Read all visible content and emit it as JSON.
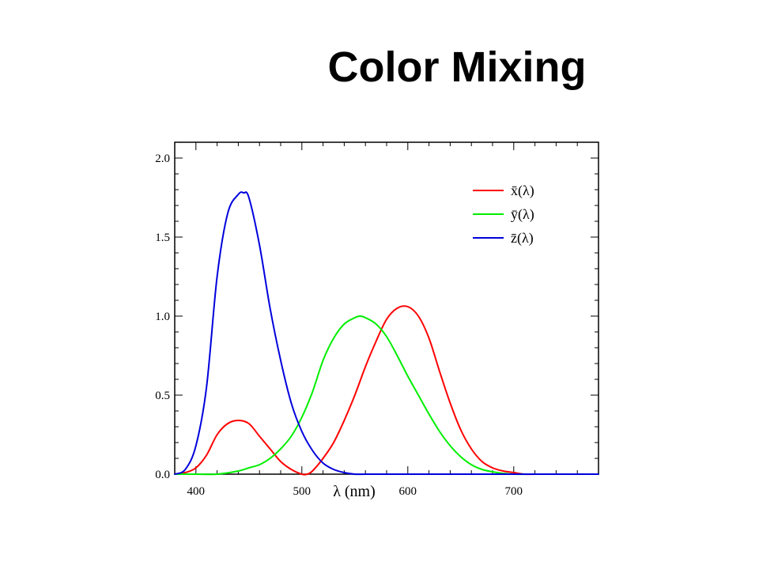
{
  "slide": {
    "title": "Color Mixing"
  },
  "chart_data": {
    "type": "line",
    "title": "",
    "xlabel": "λ (nm)",
    "ylabel": "",
    "xlim": [
      380,
      780
    ],
    "ylim": [
      0,
      2.1
    ],
    "xticks": [
      400,
      500,
      600,
      700
    ],
    "yticks": [
      0.0,
      0.5,
      1.0,
      1.5,
      2.0
    ],
    "ytick_labels": [
      "0.0",
      "0.5",
      "1.0",
      "1.5",
      "2.0"
    ],
    "grid": false,
    "legend_position": "top-right",
    "series": [
      {
        "name": "x̄(λ)",
        "color": "#ff0000",
        "x": [
          380,
          390,
          400,
          410,
          420,
          430,
          440,
          450,
          460,
          470,
          480,
          490,
          500,
          505,
          510,
          520,
          530,
          540,
          550,
          560,
          570,
          580,
          590,
          600,
          610,
          620,
          630,
          640,
          650,
          660,
          670,
          680,
          690,
          700,
          710,
          720,
          740,
          760,
          780
        ],
        "y": [
          0.0,
          0.01,
          0.04,
          0.12,
          0.25,
          0.32,
          0.34,
          0.32,
          0.24,
          0.16,
          0.08,
          0.03,
          0.0,
          0.0,
          0.02,
          0.1,
          0.2,
          0.34,
          0.5,
          0.68,
          0.84,
          0.98,
          1.05,
          1.06,
          1.0,
          0.86,
          0.65,
          0.45,
          0.28,
          0.16,
          0.08,
          0.04,
          0.02,
          0.01,
          0.0,
          0.0,
          0.0,
          0.0,
          0.0
        ]
      },
      {
        "name": "ȳ(λ)",
        "color": "#00ee00",
        "x": [
          380,
          400,
          420,
          440,
          450,
          460,
          470,
          480,
          490,
          500,
          510,
          520,
          530,
          540,
          550,
          555,
          560,
          570,
          580,
          590,
          600,
          610,
          620,
          630,
          640,
          650,
          660,
          670,
          680,
          690,
          700,
          720,
          740,
          760,
          780
        ],
        "y": [
          0.0,
          0.0,
          0.0,
          0.02,
          0.04,
          0.06,
          0.1,
          0.16,
          0.24,
          0.36,
          0.52,
          0.72,
          0.86,
          0.95,
          0.99,
          1.0,
          0.99,
          0.95,
          0.87,
          0.75,
          0.62,
          0.5,
          0.38,
          0.27,
          0.18,
          0.11,
          0.06,
          0.03,
          0.015,
          0.005,
          0.0,
          0.0,
          0.0,
          0.0,
          0.0
        ]
      },
      {
        "name": "z̄(λ)",
        "color": "#0000dd",
        "x": [
          380,
          390,
          400,
          410,
          420,
          430,
          440,
          445,
          450,
          460,
          470,
          480,
          490,
          500,
          510,
          520,
          530,
          540,
          550,
          560,
          580,
          600,
          780
        ],
        "y": [
          0.0,
          0.03,
          0.18,
          0.55,
          1.25,
          1.65,
          1.77,
          1.78,
          1.75,
          1.45,
          1.05,
          0.72,
          0.45,
          0.27,
          0.15,
          0.07,
          0.03,
          0.01,
          0.0,
          0.0,
          0.0,
          0.0,
          0.0
        ]
      }
    ]
  }
}
